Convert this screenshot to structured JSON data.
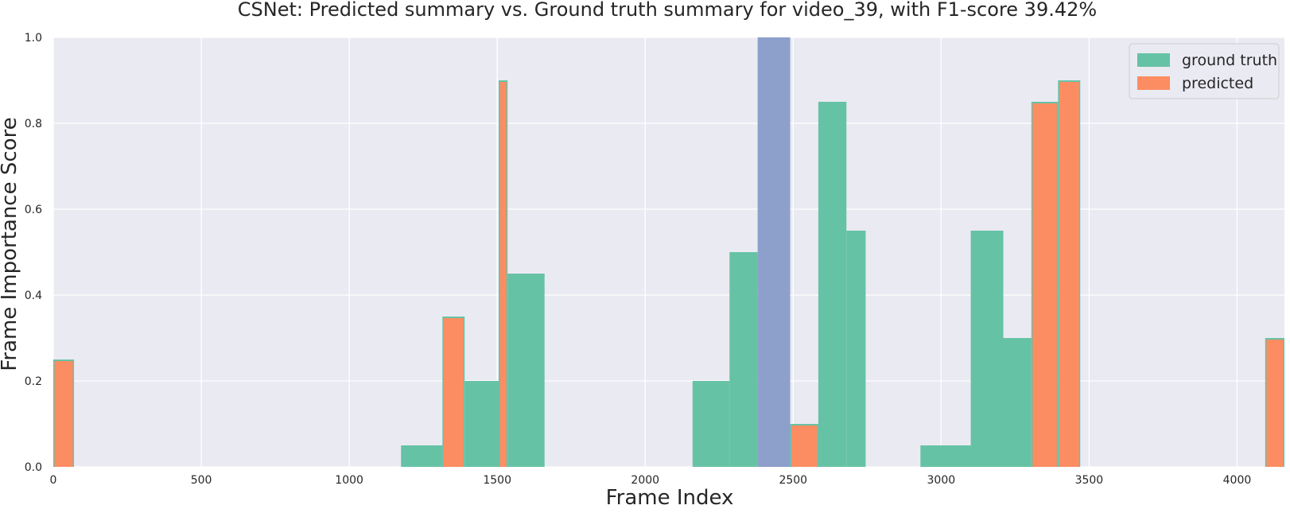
{
  "chart_data": {
    "type": "bar",
    "title": "CSNet: Predicted summary vs. Ground truth summary for video_39, with F1-score 39.42%",
    "xlabel": "Frame Index",
    "ylabel": "Frame Importance Score",
    "xlim": [
      0,
      4160
    ],
    "ylim": [
      0,
      1.0
    ],
    "xticks": [
      0,
      500,
      1000,
      1500,
      2000,
      2500,
      3000,
      3500,
      4000
    ],
    "yticks": [
      0.0,
      0.2,
      0.4,
      0.6,
      0.8,
      1.0
    ],
    "grid": true,
    "legend_position": "top-right",
    "colors": {
      "ground_truth": "#66c2a5",
      "predicted": "#fc8d62",
      "overlap": "#8da0cb",
      "background": "#eaeaf2",
      "grid": "#ffffff"
    },
    "series": [
      {
        "name": "ground truth",
        "segments": [
          {
            "x0": 0,
            "x1": 70,
            "value": 0.25
          },
          {
            "x0": 1175,
            "x1": 1315,
            "value": 0.05
          },
          {
            "x0": 1315,
            "x1": 1390,
            "value": 0.35
          },
          {
            "x0": 1390,
            "x1": 1505,
            "value": 0.2
          },
          {
            "x0": 1505,
            "x1": 1535,
            "value": 0.9
          },
          {
            "x0": 1535,
            "x1": 1660,
            "value": 0.45
          },
          {
            "x0": 2160,
            "x1": 2285,
            "value": 0.2
          },
          {
            "x0": 2285,
            "x1": 2380,
            "value": 0.5
          },
          {
            "x0": 2490,
            "x1": 2585,
            "value": 0.1
          },
          {
            "x0": 2585,
            "x1": 2680,
            "value": 0.85
          },
          {
            "x0": 2680,
            "x1": 2745,
            "value": 0.55
          },
          {
            "x0": 2930,
            "x1": 3100,
            "value": 0.05
          },
          {
            "x0": 3100,
            "x1": 3210,
            "value": 0.55
          },
          {
            "x0": 3210,
            "x1": 3305,
            "value": 0.3
          },
          {
            "x0": 3305,
            "x1": 3395,
            "value": 0.85
          },
          {
            "x0": 3395,
            "x1": 3470,
            "value": 0.9
          },
          {
            "x0": 4095,
            "x1": 4160,
            "value": 0.3
          }
        ]
      },
      {
        "name": "predicted",
        "segments": [
          {
            "x0": 0,
            "x1": 70,
            "value": 0.25
          },
          {
            "x0": 1315,
            "x1": 1390,
            "value": 0.35
          },
          {
            "x0": 1505,
            "x1": 1535,
            "value": 0.9
          },
          {
            "x0": 2490,
            "x1": 2585,
            "value": 0.1
          },
          {
            "x0": 3305,
            "x1": 3395,
            "value": 0.85
          },
          {
            "x0": 3395,
            "x1": 3470,
            "value": 0.9
          },
          {
            "x0": 4095,
            "x1": 4160,
            "value": 0.3
          }
        ]
      }
    ],
    "highlight": {
      "x0": 2380,
      "x1": 2490,
      "value": 1.0
    }
  }
}
